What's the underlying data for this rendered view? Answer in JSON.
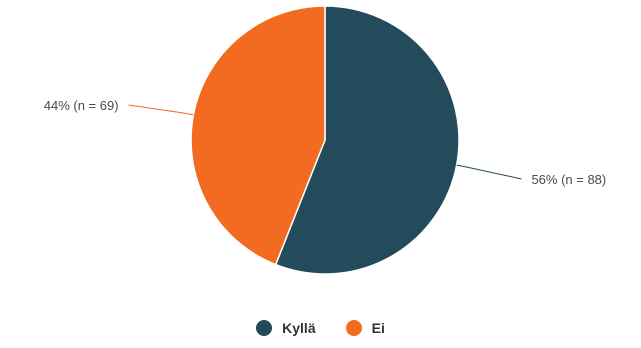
{
  "chart_data": {
    "type": "pie",
    "start_angle_deg": 0,
    "direction": "clockwise",
    "slices": [
      {
        "label": "Kyllä",
        "percent": 56,
        "n": 88,
        "data_label": "56% (n = 88)",
        "color": "#234b5b"
      },
      {
        "label": "Ei",
        "percent": 44,
        "n": 69,
        "data_label": "44% (n = 69)",
        "color": "#f26b21"
      }
    ],
    "legend_position": "bottom",
    "title": ""
  },
  "legend": {
    "items": [
      {
        "label": "Kyllä",
        "color": "#234b5b"
      },
      {
        "label": "Ei",
        "color": "#f26b21"
      }
    ]
  }
}
